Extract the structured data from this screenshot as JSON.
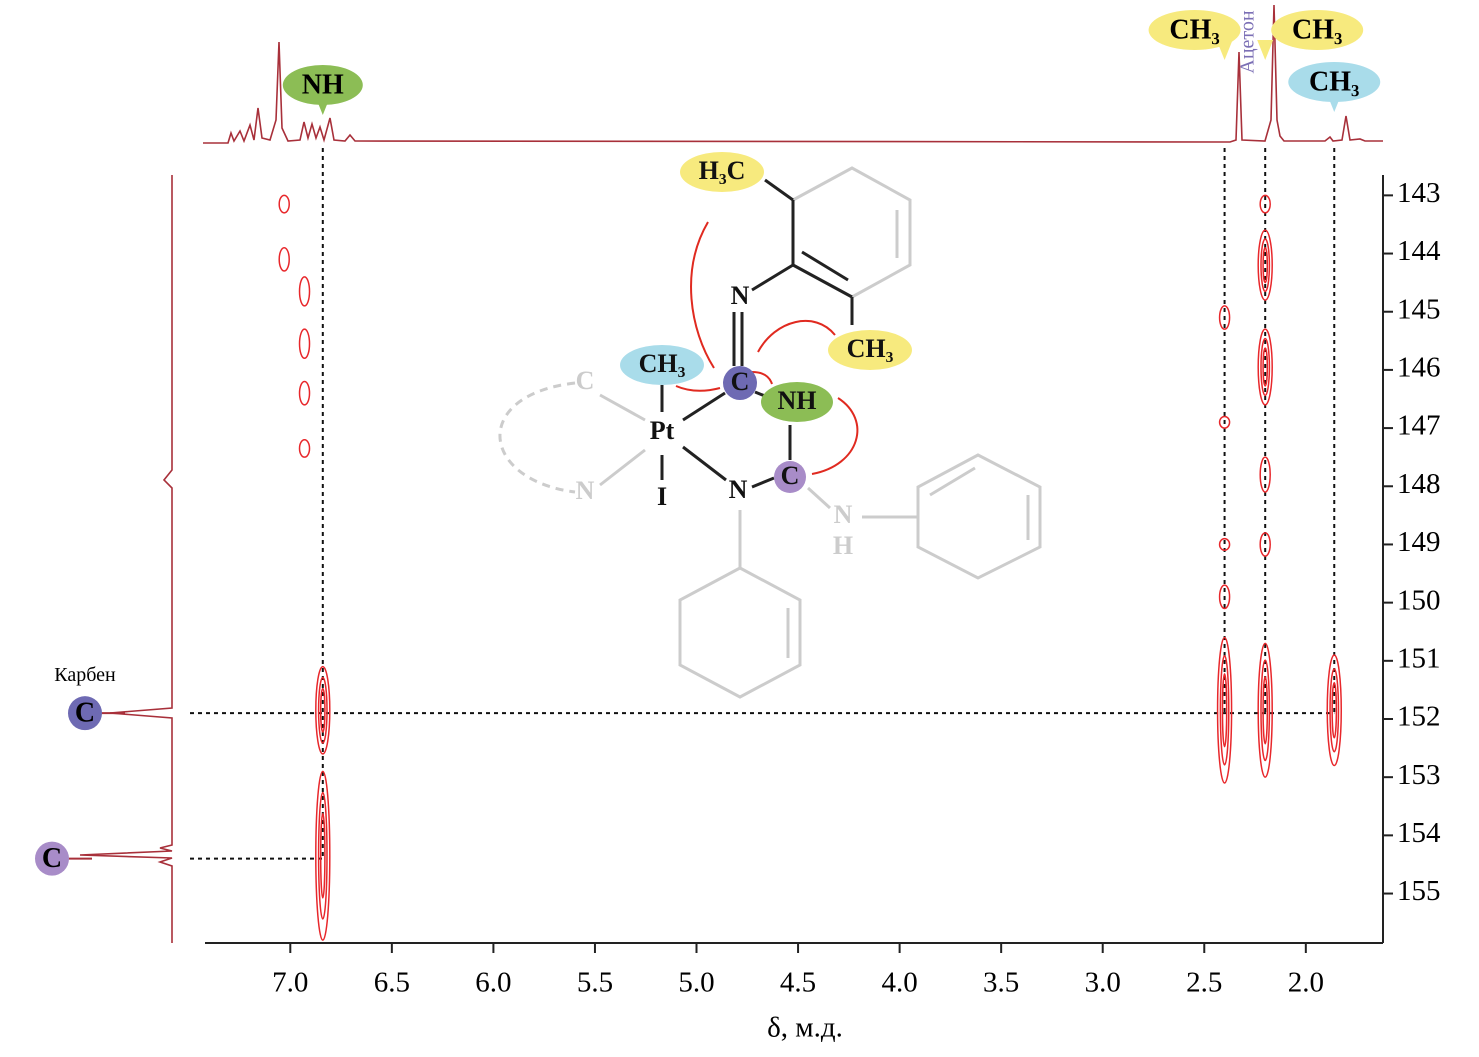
{
  "chart_data": {
    "type": "hmbc",
    "x_label": "δ, м.д.",
    "xlim": [
      7.42,
      1.62
    ],
    "xticks": [
      {
        "value": 7.0,
        "label": "7.0"
      },
      6.5,
      {
        "value": 6.0,
        "label": "6.0"
      },
      5.5,
      {
        "value": 5.0,
        "label": "5.0"
      },
      4.5,
      {
        "value": 4.0,
        "label": "4.0"
      },
      3.5,
      {
        "value": 3.0,
        "label": "3.0"
      },
      2.5,
      {
        "value": 2.0,
        "label": "2.0"
      }
    ],
    "ylim": [
      142.65,
      155.85
    ],
    "yticks": [
      143,
      144,
      145,
      146,
      147,
      148,
      149,
      150,
      151,
      152,
      153,
      154,
      155
    ],
    "peak_color": "#e8272b",
    "peaks": [
      {
        "x": 7.03,
        "y": [
          143.0,
          143.3
        ]
      },
      {
        "x": 7.03,
        "y": [
          143.9,
          144.3
        ]
      },
      {
        "x": 6.93,
        "y": [
          144.4,
          144.9
        ]
      },
      {
        "x": 6.93,
        "y": [
          145.3,
          145.8
        ]
      },
      {
        "x": 6.93,
        "y": [
          146.2,
          146.6
        ]
      },
      {
        "x": 6.93,
        "y": [
          147.2,
          147.5
        ]
      },
      {
        "x": 6.84,
        "y": [
          151.1,
          152.6
        ]
      },
      {
        "x": 6.84,
        "y": [
          152.9,
          155.8
        ]
      },
      {
        "x": 2.4,
        "y": [
          144.9,
          145.3
        ]
      },
      {
        "x": 2.4,
        "y": [
          146.8,
          147.0
        ]
      },
      {
        "x": 2.4,
        "y": [
          148.9,
          149.1
        ]
      },
      {
        "x": 2.4,
        "y": [
          149.7,
          150.1
        ]
      },
      {
        "x": 2.4,
        "y": [
          150.6,
          153.1
        ]
      },
      {
        "x": 2.2,
        "y": [
          143.0,
          143.3
        ]
      },
      {
        "x": 2.2,
        "y": [
          143.6,
          144.8
        ]
      },
      {
        "x": 2.2,
        "y": [
          145.3,
          146.6
        ]
      },
      {
        "x": 2.2,
        "y": [
          147.5,
          148.1
        ]
      },
      {
        "x": 2.2,
        "y": [
          148.8,
          149.2
        ]
      },
      {
        "x": 2.2,
        "y": [
          150.7,
          153.0
        ]
      },
      {
        "x": 1.86,
        "y": [
          150.9,
          152.8
        ]
      }
    ],
    "top_labels": [
      {
        "label": "NH",
        "x": 6.84,
        "color": "#8cbd55"
      },
      {
        "label": "CH₃",
        "x": 2.4,
        "color": "#f7ea7e"
      },
      {
        "label": "CH₃",
        "x": 2.2,
        "color": "#f7ea7e"
      },
      {
        "label": "CH₃",
        "x": 1.86,
        "color": "#a9dcea"
      }
    ],
    "solvent": {
      "label": "Ацетон",
      "x": 2.22
    },
    "left_labels": [
      {
        "label": "C",
        "y": 151.9,
        "color": "#6e6ab3",
        "note": "Карбен"
      },
      {
        "label": "C",
        "y": 154.4,
        "color": "#a88cc8"
      }
    ]
  },
  "structure": {
    "labels": [
      "H₃C",
      "N",
      "CH₃",
      "CH₃",
      "C",
      "NH",
      "Pt",
      "C",
      "N",
      "I",
      "C",
      "N",
      "N",
      "H"
    ]
  }
}
